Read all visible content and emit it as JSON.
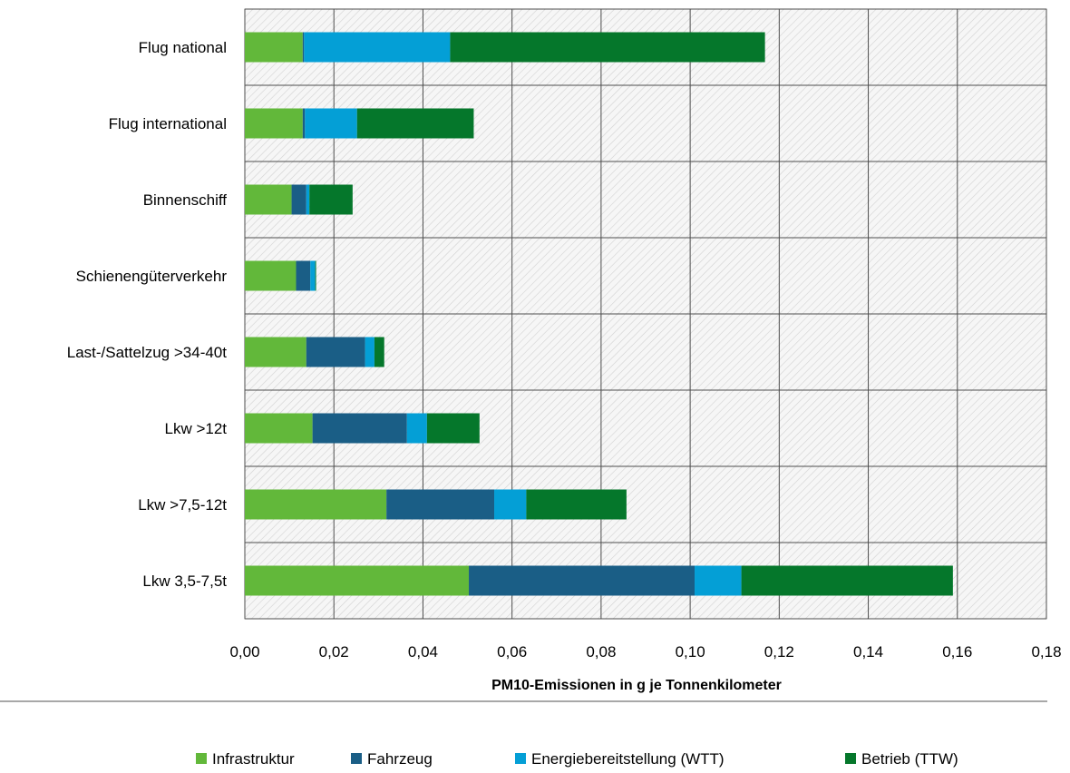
{
  "chart_data": {
    "type": "bar",
    "orientation": "horizontal",
    "stacked": true,
    "categories": [
      "Flug national",
      "Flug international",
      "Binnenschiff",
      "Schienengüterverkehr",
      "Last-/Sattelzug >34-40t",
      "Lkw >12t",
      "Lkw >7,5-12t",
      "Lkw 3,5-7,5t"
    ],
    "series": [
      {
        "name": "Infrastruktur",
        "color": "#62b83a",
        "values": [
          0.013,
          0.013,
          0.0105,
          0.0115,
          0.0138,
          0.0152,
          0.0318,
          0.0503
        ]
      },
      {
        "name": "Fahrzeug",
        "color": "#1a5e86",
        "values": [
          0.0003,
          0.0005,
          0.0033,
          0.0032,
          0.0132,
          0.0212,
          0.0242,
          0.0507
        ]
      },
      {
        "name": "Energiebereitstellung (WTT)",
        "color": "#049fd6",
        "values": [
          0.0328,
          0.0117,
          0.0007,
          0.0011,
          0.0021,
          0.0045,
          0.0072,
          0.0105
        ]
      },
      {
        "name": "Betrieb (TTW)",
        "color": "#05772b",
        "values": [
          0.0707,
          0.0262,
          0.0097,
          0.0002,
          0.0022,
          0.0118,
          0.0225,
          0.0475
        ]
      }
    ],
    "xlim": [
      0,
      0.18
    ],
    "x_ticks": [
      "0,00",
      "0,02",
      "0,04",
      "0,06",
      "0,08",
      "0,10",
      "0,12",
      "0,14",
      "0,16",
      "0,18"
    ],
    "xlabel": "PM10-Emissionen in g je Tonnenkilometer",
    "ylabel": "",
    "title": "",
    "grid": true,
    "legend_position": "bottom"
  }
}
